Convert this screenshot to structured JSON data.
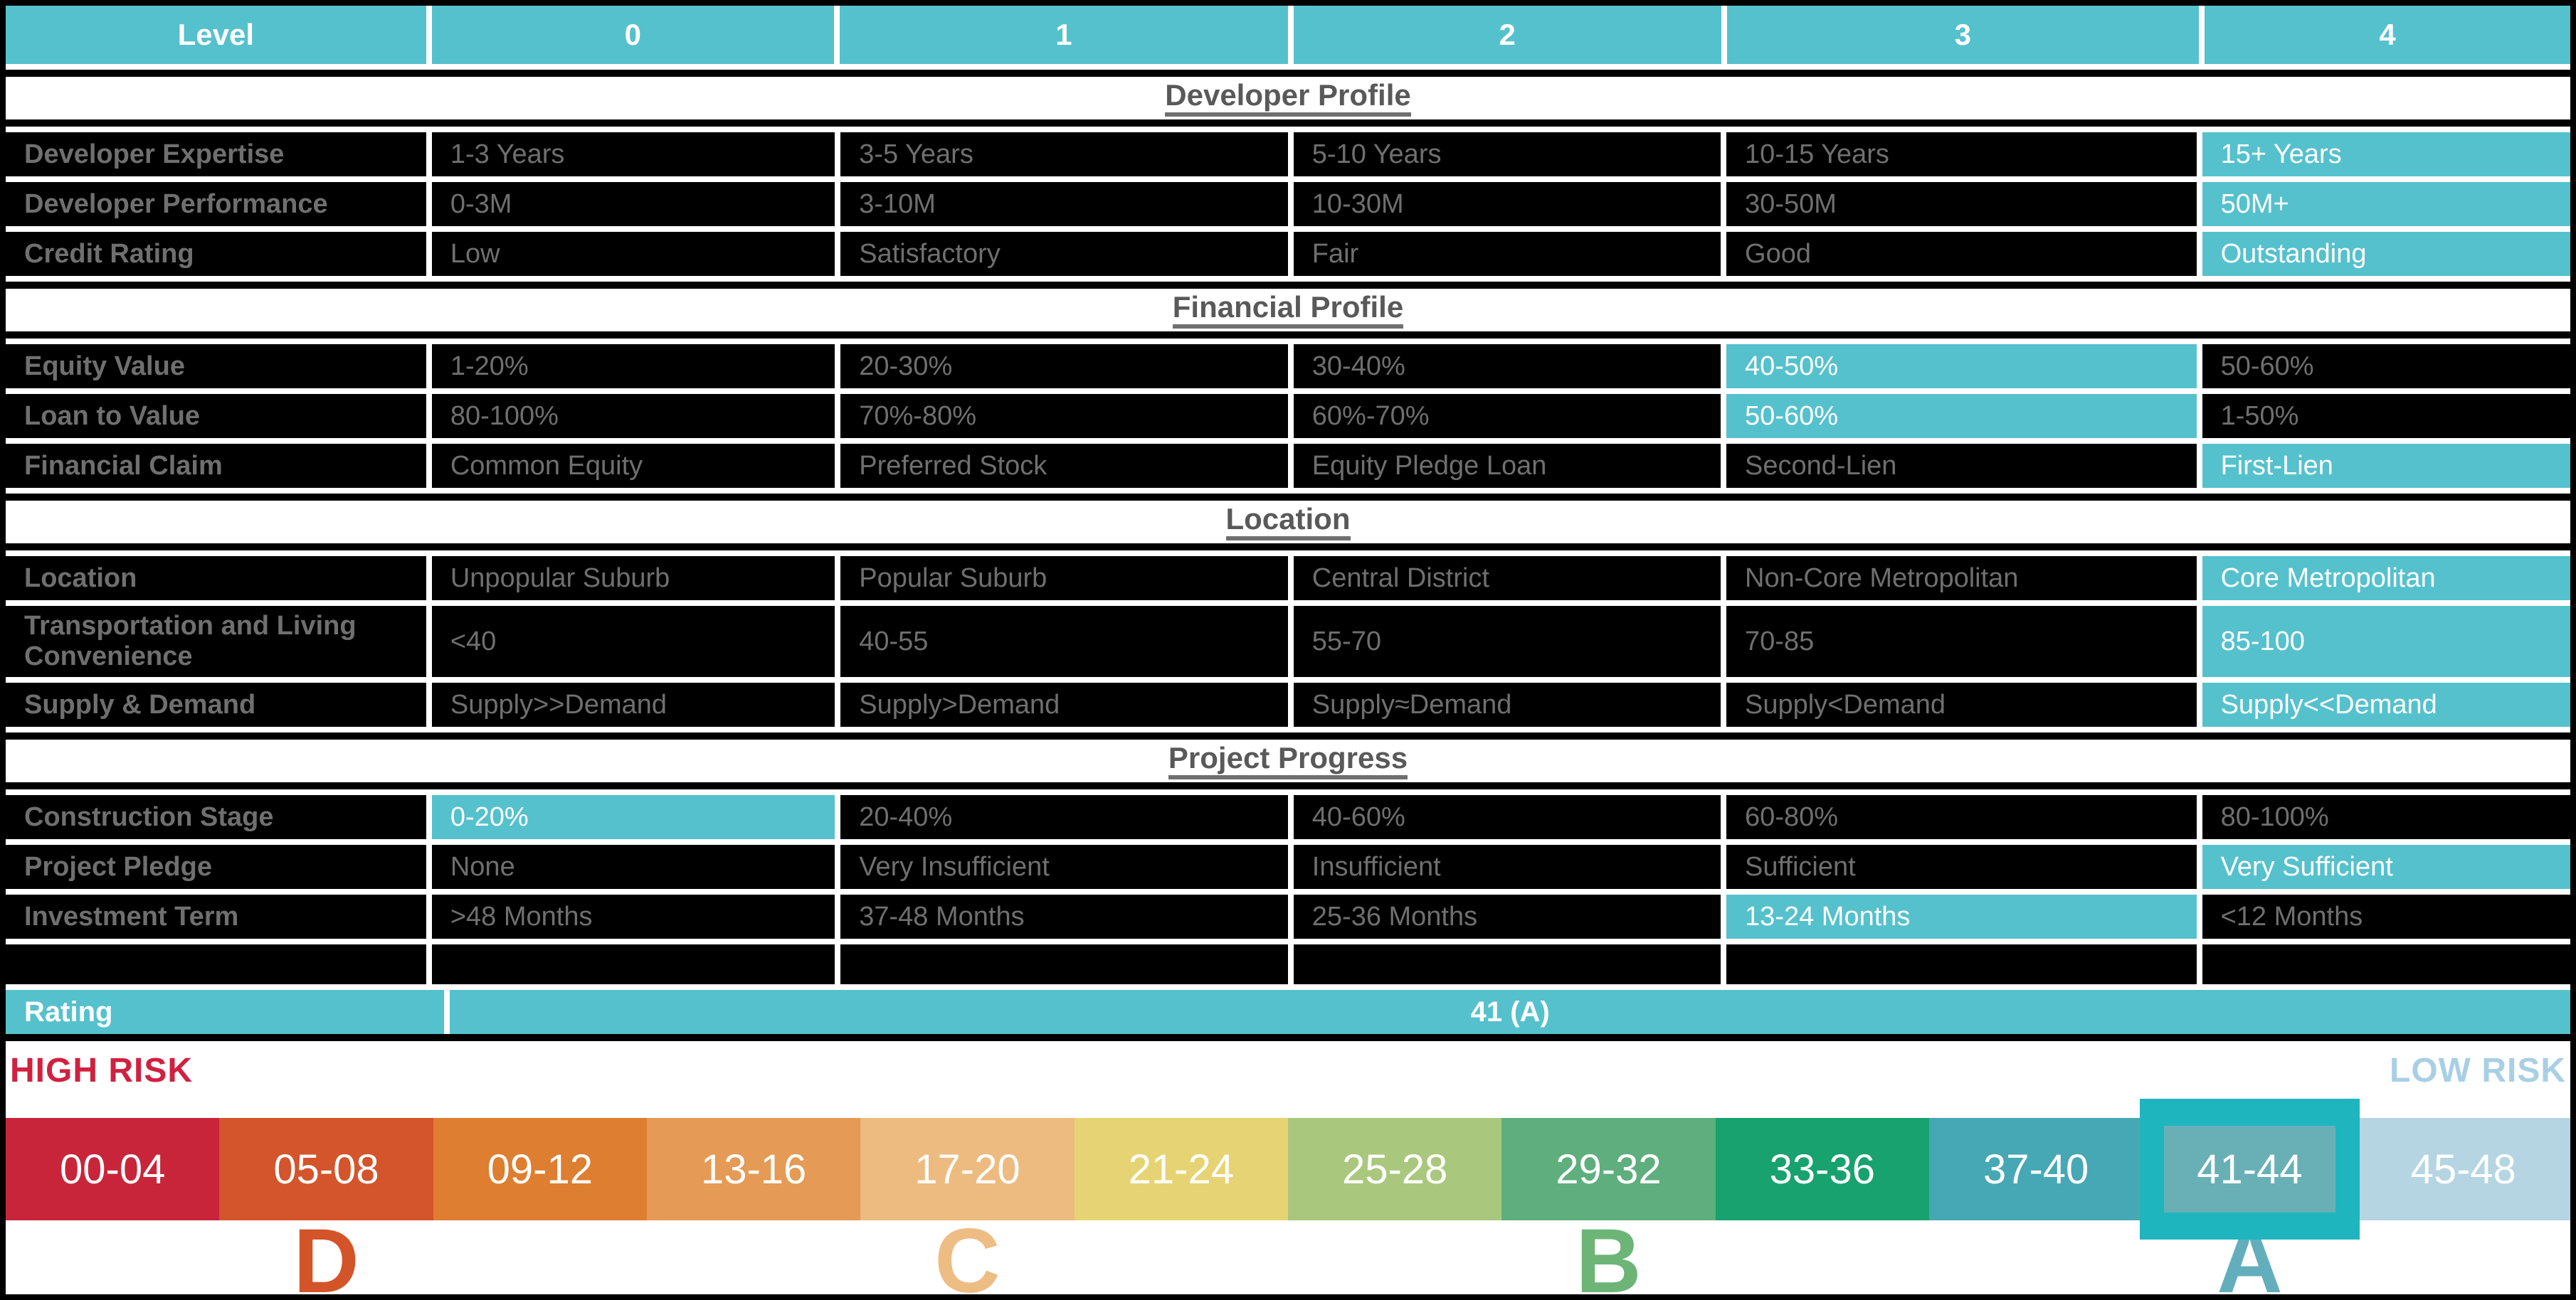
{
  "colors": {
    "teal_accent": "#55c1cd",
    "cell_background": "#000000",
    "cell_text": "#6f6f6f",
    "band_text": "#595959",
    "selected_tile_outer": "#1fb5bf",
    "selected_tile_inner": "#68b0b6"
  },
  "table": {
    "header": {
      "level_label": "Level",
      "levels": [
        "0",
        "1",
        "2",
        "3",
        "4"
      ]
    },
    "sections": [
      {
        "title": "Developer Profile",
        "rows": [
          {
            "label": "Developer Expertise",
            "cells": [
              {
                "text": "1-3 Years",
                "selected": false
              },
              {
                "text": "3-5 Years",
                "selected": false
              },
              {
                "text": "5-10 Years",
                "selected": false
              },
              {
                "text": "10-15 Years",
                "selected": false
              },
              {
                "text": "15+ Years",
                "selected": true
              }
            ]
          },
          {
            "label": "Developer Performance",
            "cells": [
              {
                "text": "0-3M",
                "selected": false
              },
              {
                "text": "3-10M",
                "selected": false
              },
              {
                "text": "10-30M",
                "selected": false
              },
              {
                "text": "30-50M",
                "selected": false
              },
              {
                "text": "50M+",
                "selected": true
              }
            ]
          },
          {
            "label": "Credit Rating",
            "cells": [
              {
                "text": "Low",
                "selected": false
              },
              {
                "text": "Satisfactory",
                "selected": false
              },
              {
                "text": "Fair",
                "selected": false
              },
              {
                "text": "Good",
                "selected": false
              },
              {
                "text": "Outstanding",
                "selected": true
              }
            ]
          }
        ]
      },
      {
        "title": "Financial Profile",
        "rows": [
          {
            "label": "Equity Value",
            "cells": [
              {
                "text": "1-20%",
                "selected": false
              },
              {
                "text": "20-30%",
                "selected": false
              },
              {
                "text": "30-40%",
                "selected": false
              },
              {
                "text": "40-50%",
                "selected": true
              },
              {
                "text": "50-60%",
                "selected": false
              }
            ]
          },
          {
            "label": "Loan to Value",
            "cells": [
              {
                "text": "80-100%",
                "selected": false
              },
              {
                "text": "70%-80%",
                "selected": false
              },
              {
                "text": "60%-70%",
                "selected": false
              },
              {
                "text": "50-60%",
                "selected": true
              },
              {
                "text": "1-50%",
                "selected": false
              }
            ]
          },
          {
            "label": "Financial Claim",
            "cells": [
              {
                "text": "Common Equity",
                "selected": false
              },
              {
                "text": "Preferred Stock",
                "selected": false
              },
              {
                "text": "Equity Pledge Loan",
                "selected": false
              },
              {
                "text": "Second-Lien",
                "selected": false
              },
              {
                "text": "First-Lien",
                "selected": true
              }
            ]
          }
        ]
      },
      {
        "title": "Location",
        "rows": [
          {
            "label": "Location",
            "cells": [
              {
                "text": "Unpopular Suburb",
                "selected": false
              },
              {
                "text": "Popular Suburb",
                "selected": false
              },
              {
                "text": "Central District",
                "selected": false
              },
              {
                "text": "Non-Core Metropolitan",
                "selected": false
              },
              {
                "text": "Core Metropolitan",
                "selected": true
              }
            ]
          },
          {
            "label": "Transportation and Living Convenience",
            "cells": [
              {
                "text": "<40",
                "selected": false
              },
              {
                "text": "40-55",
                "selected": false
              },
              {
                "text": "55-70",
                "selected": false
              },
              {
                "text": "70-85",
                "selected": false
              },
              {
                "text": "85-100",
                "selected": true
              }
            ]
          },
          {
            "label": "Supply & Demand",
            "cells": [
              {
                "text": "Supply>>Demand",
                "selected": false
              },
              {
                "text": "Supply>Demand",
                "selected": false
              },
              {
                "text": "Supply≈Demand",
                "selected": false
              },
              {
                "text": "Supply<Demand",
                "selected": false
              },
              {
                "text": "Supply<<Demand",
                "selected": true
              }
            ]
          }
        ]
      },
      {
        "title": "Project Progress",
        "rows": [
          {
            "label": "Construction Stage",
            "cells": [
              {
                "text": "0-20%",
                "selected": true
              },
              {
                "text": "20-40%",
                "selected": false
              },
              {
                "text": "40-60%",
                "selected": false
              },
              {
                "text": "60-80%",
                "selected": false
              },
              {
                "text": "80-100%",
                "selected": false
              }
            ]
          },
          {
            "label": "Project Pledge",
            "cells": [
              {
                "text": "None",
                "selected": false
              },
              {
                "text": "Very Insufficient",
                "selected": false
              },
              {
                "text": "Insufficient",
                "selected": false
              },
              {
                "text": "Sufficient",
                "selected": false
              },
              {
                "text": "Very Sufficient",
                "selected": true
              }
            ]
          },
          {
            "label": "Investment Term",
            "cells": [
              {
                "text": ">48 Months",
                "selected": false
              },
              {
                "text": "37-48 Months",
                "selected": false
              },
              {
                "text": "25-36 Months",
                "selected": false
              },
              {
                "text": "13-24 Months",
                "selected": true
              },
              {
                "text": "<12 Months",
                "selected": false
              }
            ]
          }
        ]
      }
    ],
    "rating": {
      "label": "Rating",
      "value": "41 (A)"
    }
  },
  "risk_scale": {
    "high_label": "HIGH RISK",
    "high_color": "#d02140",
    "low_label": "LOW RISK",
    "low_color": "#a9cfe5",
    "segments": [
      {
        "range": "00-04",
        "color": "#c9253a",
        "selected": false
      },
      {
        "range": "05-08",
        "color": "#d4542b",
        "selected": false
      },
      {
        "range": "09-12",
        "color": "#de7e30",
        "selected": false
      },
      {
        "range": "13-16",
        "color": "#e59a55",
        "selected": false
      },
      {
        "range": "17-20",
        "color": "#edbb80",
        "selected": false
      },
      {
        "range": "21-24",
        "color": "#e6d474",
        "selected": false
      },
      {
        "range": "25-28",
        "color": "#a9c87e",
        "selected": false
      },
      {
        "range": "29-32",
        "color": "#5fae7d",
        "selected": false
      },
      {
        "range": "33-36",
        "color": "#18a26f",
        "selected": false
      },
      {
        "range": "37-40",
        "color": "#46a8b4",
        "selected": false
      },
      {
        "range": "41-44",
        "color": "#62b1b8",
        "selected": true
      },
      {
        "range": "45-48",
        "color": "#b5d5e2",
        "selected": false
      }
    ],
    "grades": [
      {
        "letter": "D",
        "color": "#d45429"
      },
      {
        "letter": "C",
        "color": "#eebd84"
      },
      {
        "letter": "B",
        "color": "#6cb577"
      },
      {
        "letter": "A",
        "color": "#62aebc"
      }
    ]
  }
}
